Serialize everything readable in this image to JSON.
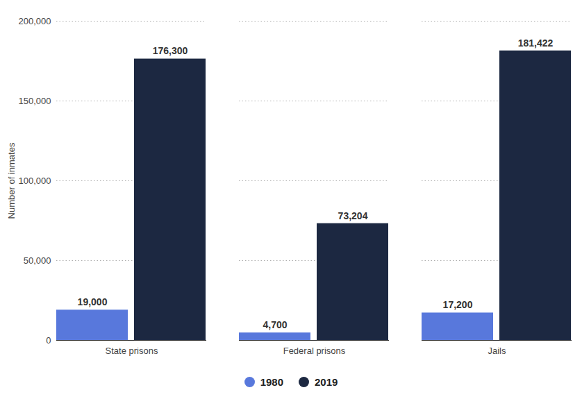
{
  "chart_data": {
    "type": "bar",
    "y_label": "Number of inmates",
    "categories": [
      "State prisons",
      "Federal prisons",
      "Jails"
    ],
    "series": [
      {
        "name": "1980",
        "color": "#5878dc",
        "values": [
          19000,
          4700,
          17200
        ],
        "value_labels": [
          "19,000",
          "4,700",
          "17,200"
        ]
      },
      {
        "name": "2019",
        "color": "#1c2841",
        "values": [
          176300,
          73204,
          181422
        ],
        "value_labels": [
          "176,300",
          "73,204",
          "181,422"
        ]
      }
    ],
    "ylim": [
      0,
      200000
    ],
    "yticks": [
      0,
      {
        "value": 50000,
        "label": "50,000"
      },
      {
        "value": 100000,
        "label": "100,000"
      },
      {
        "value": 150000,
        "label": "150,000"
      },
      {
        "value": 200000,
        "label": "200,000"
      }
    ],
    "grid": true,
    "legend": "bottom",
    "data_labels": true
  }
}
